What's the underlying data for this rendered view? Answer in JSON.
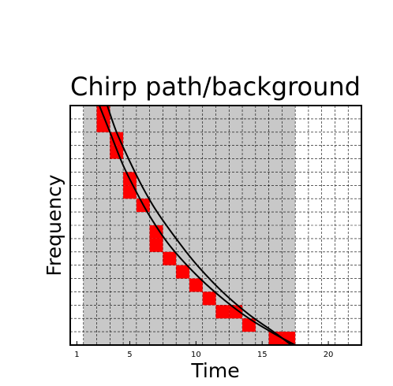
{
  "chart_data": {
    "type": "heatmap",
    "title": "Chirp path/background",
    "xlabel": "Time",
    "ylabel": "Frequency",
    "xlim": [
      0.5,
      22.5
    ],
    "ylim": [
      0.5,
      18.5
    ],
    "x_ticks": [
      1,
      5,
      10,
      15,
      20
    ],
    "y_ticks": [],
    "grid": true,
    "colors": {
      "background_region": "#c8c8c8",
      "path_cells": "#ff0000",
      "curves": "#000000",
      "grid": "#000000"
    },
    "background_region": {
      "x_start": 2,
      "x_end": 17
    },
    "path_cells": [
      {
        "x": 3,
        "y": 18
      },
      {
        "x": 3,
        "y": 17
      },
      {
        "x": 4,
        "y": 16
      },
      {
        "x": 4,
        "y": 15
      },
      {
        "x": 5,
        "y": 13
      },
      {
        "x": 5,
        "y": 12
      },
      {
        "x": 6,
        "y": 11
      },
      {
        "x": 7,
        "y": 9
      },
      {
        "x": 7,
        "y": 8
      },
      {
        "x": 8,
        "y": 7
      },
      {
        "x": 9,
        "y": 6
      },
      {
        "x": 10,
        "y": 5
      },
      {
        "x": 11,
        "y": 4
      },
      {
        "x": 12,
        "y": 3
      },
      {
        "x": 13,
        "y": 3
      },
      {
        "x": 14,
        "y": 2
      },
      {
        "x": 16,
        "y": 1
      },
      {
        "x": 17,
        "y": 1
      }
    ],
    "series": [
      {
        "points": [
          [
            2.7,
            18.5
          ],
          [
            3.5,
            16.5
          ],
          [
            4.5,
            14.0
          ],
          [
            5.5,
            12.0
          ],
          [
            6.5,
            10.2
          ],
          [
            8,
            8.0
          ],
          [
            10,
            5.8
          ],
          [
            12,
            4.0
          ],
          [
            14,
            2.5
          ],
          [
            16,
            1.3
          ],
          [
            17.5,
            0.5
          ]
        ]
      },
      {
        "points": [
          [
            3.3,
            18.5
          ],
          [
            4,
            16.5
          ],
          [
            5,
            14.3
          ],
          [
            6,
            12.3
          ],
          [
            7,
            10.6
          ],
          [
            8.5,
            8.5
          ],
          [
            10,
            6.6
          ],
          [
            12,
            4.5
          ],
          [
            14,
            2.8
          ],
          [
            16,
            1.4
          ],
          [
            17.2,
            0.5
          ]
        ]
      }
    ]
  }
}
